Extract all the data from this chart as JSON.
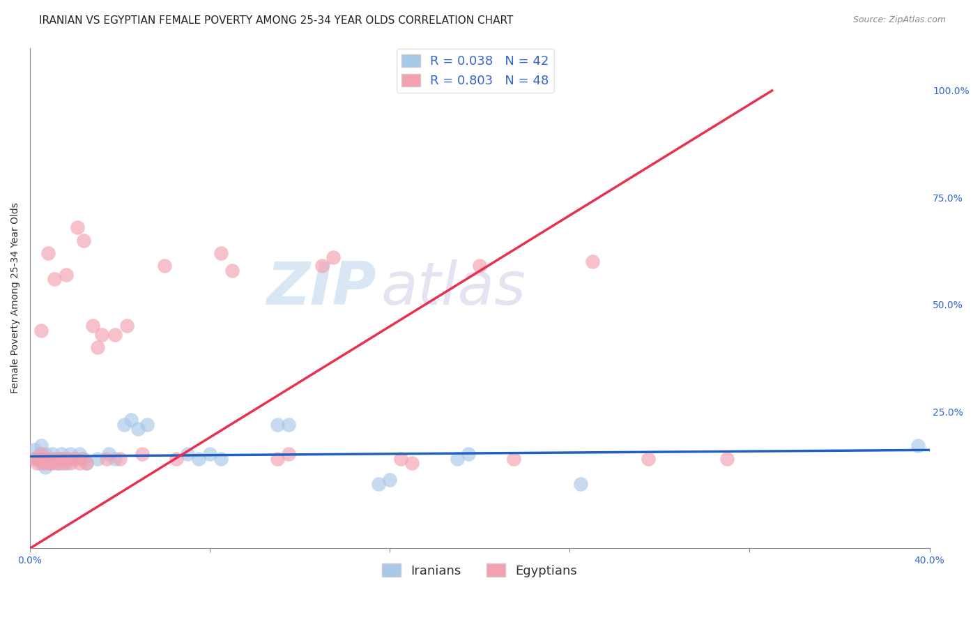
{
  "title": "IRANIAN VS EGYPTIAN FEMALE POVERTY AMONG 25-34 YEAR OLDS CORRELATION CHART",
  "source": "Source: ZipAtlas.com",
  "ylabel": "Female Poverty Among 25-34 Year Olds",
  "xlim": [
    0.0,
    0.4
  ],
  "ylim": [
    -0.07,
    1.1
  ],
  "xticks": [
    0.0,
    0.08,
    0.16,
    0.24,
    0.32,
    0.4
  ],
  "xticklabels": [
    "0.0%",
    "",
    "",
    "",
    "",
    "40.0%"
  ],
  "yticks_right": [
    0.25,
    0.5,
    0.75,
    1.0
  ],
  "yticklabels_right": [
    "25.0%",
    "50.0%",
    "75.0%",
    "100.0%"
  ],
  "iranian_color": "#a8c8e8",
  "egyptian_color": "#f4a0b0",
  "iranian_line_color": "#2060c0",
  "egyptian_line_color": "#e83050",
  "iranian_R": 0.038,
  "iranian_N": 42,
  "egyptian_R": 0.803,
  "egyptian_N": 48,
  "watermark_zip": "ZIP",
  "watermark_atlas": "atlas",
  "background_color": "#ffffff",
  "grid_color": "#cccccc",
  "title_fontsize": 11,
  "axis_label_fontsize": 10,
  "tick_fontsize": 10,
  "legend_fontsize": 13,
  "iranian_line": [
    0.0,
    0.145,
    0.4,
    0.16
  ],
  "egyptian_line": [
    0.0,
    -0.07,
    0.33,
    1.0
  ],
  "iranian_scatter": [
    [
      0.002,
      0.16
    ],
    [
      0.003,
      0.14
    ],
    [
      0.004,
      0.15
    ],
    [
      0.005,
      0.13
    ],
    [
      0.005,
      0.17
    ],
    [
      0.006,
      0.14
    ],
    [
      0.007,
      0.15
    ],
    [
      0.007,
      0.12
    ],
    [
      0.008,
      0.14
    ],
    [
      0.009,
      0.13
    ],
    [
      0.01,
      0.15
    ],
    [
      0.011,
      0.14
    ],
    [
      0.012,
      0.13
    ],
    [
      0.013,
      0.14
    ],
    [
      0.014,
      0.15
    ],
    [
      0.015,
      0.14
    ],
    [
      0.016,
      0.13
    ],
    [
      0.017,
      0.14
    ],
    [
      0.018,
      0.15
    ],
    [
      0.02,
      0.14
    ],
    [
      0.022,
      0.15
    ],
    [
      0.024,
      0.14
    ],
    [
      0.025,
      0.13
    ],
    [
      0.03,
      0.14
    ],
    [
      0.035,
      0.15
    ],
    [
      0.038,
      0.14
    ],
    [
      0.042,
      0.22
    ],
    [
      0.045,
      0.23
    ],
    [
      0.048,
      0.21
    ],
    [
      0.052,
      0.22
    ],
    [
      0.07,
      0.15
    ],
    [
      0.075,
      0.14
    ],
    [
      0.08,
      0.15
    ],
    [
      0.085,
      0.14
    ],
    [
      0.11,
      0.22
    ],
    [
      0.115,
      0.22
    ],
    [
      0.155,
      0.08
    ],
    [
      0.16,
      0.09
    ],
    [
      0.19,
      0.14
    ],
    [
      0.195,
      0.15
    ],
    [
      0.245,
      0.08
    ],
    [
      0.395,
      0.17
    ]
  ],
  "egyptian_scatter": [
    [
      0.002,
      0.14
    ],
    [
      0.003,
      0.13
    ],
    [
      0.004,
      0.14
    ],
    [
      0.005,
      0.15
    ],
    [
      0.005,
      0.44
    ],
    [
      0.006,
      0.13
    ],
    [
      0.007,
      0.14
    ],
    [
      0.008,
      0.13
    ],
    [
      0.008,
      0.62
    ],
    [
      0.009,
      0.14
    ],
    [
      0.01,
      0.13
    ],
    [
      0.011,
      0.56
    ],
    [
      0.012,
      0.14
    ],
    [
      0.013,
      0.13
    ],
    [
      0.014,
      0.14
    ],
    [
      0.015,
      0.13
    ],
    [
      0.016,
      0.57
    ],
    [
      0.017,
      0.14
    ],
    [
      0.018,
      0.13
    ],
    [
      0.02,
      0.14
    ],
    [
      0.021,
      0.68
    ],
    [
      0.022,
      0.13
    ],
    [
      0.023,
      0.14
    ],
    [
      0.024,
      0.65
    ],
    [
      0.025,
      0.13
    ],
    [
      0.028,
      0.45
    ],
    [
      0.03,
      0.4
    ],
    [
      0.032,
      0.43
    ],
    [
      0.034,
      0.14
    ],
    [
      0.038,
      0.43
    ],
    [
      0.04,
      0.14
    ],
    [
      0.043,
      0.45
    ],
    [
      0.05,
      0.15
    ],
    [
      0.06,
      0.59
    ],
    [
      0.065,
      0.14
    ],
    [
      0.085,
      0.62
    ],
    [
      0.09,
      0.58
    ],
    [
      0.11,
      0.14
    ],
    [
      0.115,
      0.15
    ],
    [
      0.13,
      0.59
    ],
    [
      0.135,
      0.61
    ],
    [
      0.165,
      0.14
    ],
    [
      0.17,
      0.13
    ],
    [
      0.2,
      0.59
    ],
    [
      0.215,
      0.14
    ],
    [
      0.25,
      0.6
    ],
    [
      0.275,
      0.14
    ],
    [
      0.31,
      0.14
    ]
  ]
}
